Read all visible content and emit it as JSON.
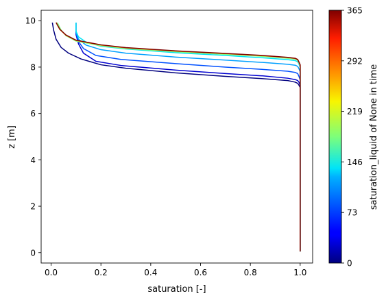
{
  "chart_data": {
    "type": "line",
    "title": "",
    "xlabel": "saturation [-]",
    "ylabel": "z [m]",
    "xlim": [
      -0.04,
      1.05
    ],
    "ylim": [
      -0.45,
      10.45
    ],
    "xticks": [
      0.0,
      0.2,
      0.4,
      0.6,
      0.8,
      1.0
    ],
    "xtick_labels": [
      "0.0",
      "0.2",
      "0.4",
      "0.6",
      "0.8",
      "1.0"
    ],
    "yticks": [
      0,
      2,
      4,
      6,
      8,
      10
    ],
    "ytick_labels": [
      "0",
      "2",
      "4",
      "6",
      "8",
      "10"
    ],
    "grid": false,
    "legend": "none",
    "colorbar": {
      "label": "saturation_liquid of None in time",
      "range": [
        0,
        365
      ],
      "ticks": [
        0,
        73,
        146,
        219,
        292,
        365
      ],
      "tick_labels": [
        "0",
        "73",
        "146",
        "219",
        "292",
        "365"
      ],
      "colormap": "jet"
    },
    "series": [
      {
        "time": 0,
        "color": "#00007f",
        "points": [
          [
            0.005,
            9.92
          ],
          [
            0.01,
            9.6
          ],
          [
            0.02,
            9.2
          ],
          [
            0.04,
            8.85
          ],
          [
            0.07,
            8.6
          ],
          [
            0.12,
            8.35
          ],
          [
            0.2,
            8.1
          ],
          [
            0.3,
            7.95
          ],
          [
            0.5,
            7.75
          ],
          [
            0.7,
            7.6
          ],
          [
            0.85,
            7.5
          ],
          [
            0.95,
            7.42
          ],
          [
            0.98,
            7.35
          ],
          [
            0.99,
            7.3
          ],
          [
            0.995,
            7.22
          ],
          [
            1.0,
            7.12
          ],
          [
            1.0,
            0.05
          ]
        ]
      },
      {
        "time": 35,
        "color": "#0000d0",
        "points": [
          [
            0.1,
            9.92
          ],
          [
            0.1,
            9.4
          ],
          [
            0.11,
            9.0
          ],
          [
            0.13,
            8.6
          ],
          [
            0.18,
            8.25
          ],
          [
            0.28,
            8.07
          ],
          [
            0.5,
            7.87
          ],
          [
            0.7,
            7.72
          ],
          [
            0.85,
            7.62
          ],
          [
            0.95,
            7.52
          ],
          [
            0.98,
            7.46
          ],
          [
            0.99,
            7.42
          ],
          [
            0.995,
            7.35
          ],
          [
            1.0,
            7.22
          ],
          [
            1.0,
            0.05
          ]
        ]
      },
      {
        "time": 70,
        "color": "#0050ff",
        "points": [
          [
            0.1,
            9.92
          ],
          [
            0.1,
            9.45
          ],
          [
            0.11,
            9.1
          ],
          [
            0.13,
            8.8
          ],
          [
            0.18,
            8.5
          ],
          [
            0.28,
            8.33
          ],
          [
            0.5,
            8.15
          ],
          [
            0.7,
            8.0
          ],
          [
            0.85,
            7.9
          ],
          [
            0.95,
            7.82
          ],
          [
            0.98,
            7.77
          ],
          [
            0.99,
            7.72
          ],
          [
            0.995,
            7.6
          ],
          [
            1.0,
            7.45
          ],
          [
            1.0,
            0.05
          ]
        ]
      },
      {
        "time": 105,
        "color": "#00a0ff",
        "points": [
          [
            0.1,
            9.92
          ],
          [
            0.1,
            9.5
          ],
          [
            0.11,
            9.2
          ],
          [
            0.14,
            8.95
          ],
          [
            0.2,
            8.75
          ],
          [
            0.3,
            8.6
          ],
          [
            0.5,
            8.43
          ],
          [
            0.7,
            8.3
          ],
          [
            0.85,
            8.2
          ],
          [
            0.95,
            8.12
          ],
          [
            0.98,
            8.08
          ],
          [
            0.99,
            8.03
          ],
          [
            0.995,
            7.93
          ],
          [
            1.0,
            7.8
          ],
          [
            1.0,
            0.05
          ]
        ]
      },
      {
        "time": 140,
        "color": "#00e5f5",
        "points": [
          [
            0.1,
            9.92
          ],
          [
            0.1,
            9.55
          ],
          [
            0.11,
            9.3
          ],
          [
            0.14,
            9.08
          ],
          [
            0.2,
            8.9
          ],
          [
            0.3,
            8.78
          ],
          [
            0.5,
            8.62
          ],
          [
            0.7,
            8.5
          ],
          [
            0.85,
            8.4
          ],
          [
            0.95,
            8.32
          ],
          [
            0.98,
            8.28
          ],
          [
            0.99,
            8.23
          ],
          [
            0.995,
            8.13
          ],
          [
            1.0,
            8.0
          ],
          [
            1.0,
            0.05
          ]
        ]
      },
      {
        "time": 180,
        "color": "#7fff7f",
        "points": [
          [
            0.025,
            9.92
          ],
          [
            0.04,
            9.6
          ],
          [
            0.06,
            9.35
          ],
          [
            0.1,
            9.12
          ],
          [
            0.2,
            8.92
          ],
          [
            0.3,
            8.8
          ],
          [
            0.5,
            8.66
          ],
          [
            0.7,
            8.55
          ],
          [
            0.85,
            8.46
          ],
          [
            0.95,
            8.38
          ],
          [
            0.98,
            8.34
          ],
          [
            0.99,
            8.29
          ],
          [
            0.995,
            8.18
          ],
          [
            1.0,
            8.05
          ],
          [
            1.0,
            0.05
          ]
        ]
      },
      {
        "time": 290,
        "color": "#ff9000",
        "points": [
          [
            0.02,
            9.92
          ],
          [
            0.035,
            9.62
          ],
          [
            0.06,
            9.37
          ],
          [
            0.1,
            9.15
          ],
          [
            0.2,
            8.95
          ],
          [
            0.3,
            8.83
          ],
          [
            0.5,
            8.69
          ],
          [
            0.7,
            8.58
          ],
          [
            0.85,
            8.49
          ],
          [
            0.95,
            8.41
          ],
          [
            0.98,
            8.37
          ],
          [
            0.99,
            8.32
          ],
          [
            0.995,
            8.21
          ],
          [
            1.0,
            8.08
          ],
          [
            1.0,
            0.05
          ]
        ]
      },
      {
        "time": 365,
        "color": "#7f0000",
        "points": [
          [
            0.02,
            9.92
          ],
          [
            0.035,
            9.63
          ],
          [
            0.06,
            9.38
          ],
          [
            0.1,
            9.16
          ],
          [
            0.2,
            8.96
          ],
          [
            0.3,
            8.84
          ],
          [
            0.5,
            8.7
          ],
          [
            0.7,
            8.59
          ],
          [
            0.85,
            8.5
          ],
          [
            0.95,
            8.42
          ],
          [
            0.98,
            8.38
          ],
          [
            0.99,
            8.33
          ],
          [
            0.995,
            8.22
          ],
          [
            1.0,
            8.1
          ],
          [
            1.0,
            0.05
          ]
        ]
      }
    ]
  }
}
